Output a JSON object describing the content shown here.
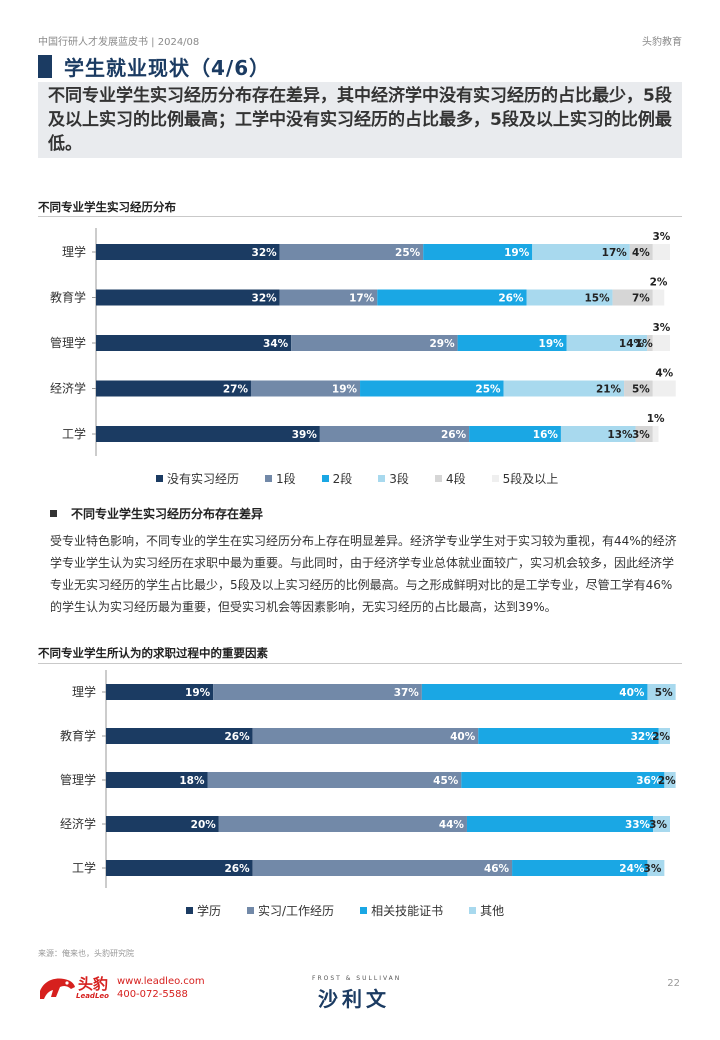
{
  "header": {
    "left_text": "中国行研人才发展蓝皮书 | 2024/08",
    "right_text": "头豹教育"
  },
  "page_title": "学生就业现状（4/6）",
  "summary": "不同专业学生实习经历分布存在差异，其中经济学中没有实习经历的占比最少，5段及以上实习的比例最高；工学中没有实习经历的占比最多，5段及以上实习的比例最低。",
  "section1_title": "不同专业学生实习经历分布",
  "section2_title": "不同专业学生所认为的求职过程中的重要因素",
  "bullet_title": "不同专业学生实习经历分布存在差异",
  "paragraph": "受专业特色影响，不同专业的学生在实习经历分布上存在明显差异。经济学专业学生对于实习较为重视，有44%的经济学专业学生认为实习经历在求职中最为重要。与此同时，由于经济学专业总体就业面较广，实习机会较多，因此经济学专业无实习经历的学生占比最少，5段及以上实习经历的比例最高。与之形成鲜明对比的是工学专业，尽管工学有46%的学生认为实习经历最为重要，但受实习机会等因素影响，无实习经历的占比最高，达到39%。",
  "source": "来源：俺来也，头豹研究院",
  "footer": {
    "logo_text": "头豹",
    "logo_sub": "LeadLeo",
    "website": "www.leadleo.com",
    "phone": "400-072-5588",
    "partner_small": "FROST & SULLIVAN",
    "partner_big": "沙利文",
    "page_number": "22"
  },
  "chart_data": [
    {
      "type": "bar",
      "orientation": "horizontal-stacked",
      "title": "不同专业学生实习经历分布",
      "categories": [
        "理学",
        "教育学",
        "管理学",
        "经济学",
        "工学"
      ],
      "series": [
        {
          "name": "没有实习经历",
          "color": "#1b3b62",
          "values": [
            32,
            32,
            34,
            27,
            39
          ]
        },
        {
          "name": "1段",
          "color": "#7289a8",
          "values": [
            25,
            17,
            29,
            19,
            26
          ]
        },
        {
          "name": "2段",
          "color": "#1aa7e4",
          "values": [
            19,
            26,
            19,
            25,
            16
          ]
        },
        {
          "name": "3段",
          "color": "#a8d9ee",
          "values": [
            17,
            15,
            14,
            21,
            13
          ]
        },
        {
          "name": "4段",
          "color": "#d6d6d6",
          "values": [
            4,
            7,
            1,
            5,
            3
          ]
        },
        {
          "name": "5段及以上",
          "color": "#efefef",
          "values": [
            3,
            2,
            3,
            4,
            1
          ]
        }
      ],
      "legend_position": "bottom",
      "xlim": [
        0,
        100
      ]
    },
    {
      "type": "bar",
      "orientation": "horizontal-stacked",
      "title": "不同专业学生所认为的求职过程中的重要因素",
      "categories": [
        "理学",
        "教育学",
        "管理学",
        "经济学",
        "工学"
      ],
      "series": [
        {
          "name": "学历",
          "color": "#1b3b62",
          "values": [
            19,
            26,
            18,
            20,
            26
          ]
        },
        {
          "name": "实习/工作经历",
          "color": "#7289a8",
          "values": [
            37,
            40,
            45,
            44,
            46
          ]
        },
        {
          "name": "相关技能证书",
          "color": "#1aa7e4",
          "values": [
            40,
            32,
            36,
            33,
            24
          ]
        },
        {
          "name": "其他",
          "color": "#a8d9ee",
          "values": [
            5,
            2,
            2,
            3,
            3
          ]
        }
      ],
      "legend_position": "bottom",
      "xlim": [
        0,
        100
      ]
    }
  ]
}
